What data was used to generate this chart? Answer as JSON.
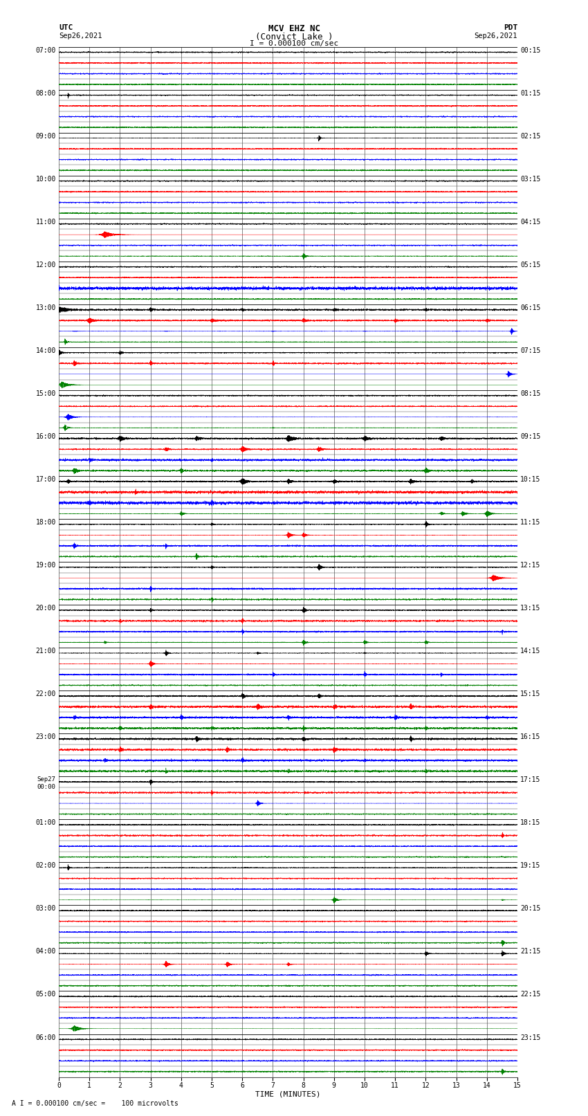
{
  "title_line1": "MCV EHZ NC",
  "title_line2": "(Convict Lake )",
  "scale_text": "I = 0.000100 cm/sec",
  "footer_text": "A I = 0.000100 cm/sec =    100 microvolts",
  "utc_label": "UTC",
  "utc_date": "Sep26,2021",
  "pdt_label": "PDT",
  "pdt_date": "Sep26,2021",
  "xlabel": "TIME (MINUTES)",
  "bg_color": "#ffffff",
  "fig_width": 8.5,
  "fig_height": 16.13,
  "dpi": 100,
  "left_labels_utc": [
    "07:00",
    "08:00",
    "09:00",
    "10:00",
    "11:00",
    "12:00",
    "13:00",
    "14:00",
    "15:00",
    "16:00",
    "17:00",
    "18:00",
    "19:00",
    "20:00",
    "21:00",
    "22:00",
    "23:00",
    "Sep27\n00:00",
    "01:00",
    "02:00",
    "03:00",
    "04:00",
    "05:00",
    "06:00"
  ],
  "right_labels_pdt": [
    "00:15",
    "01:15",
    "02:15",
    "03:15",
    "04:15",
    "05:15",
    "06:15",
    "07:15",
    "08:15",
    "09:15",
    "10:15",
    "11:15",
    "12:15",
    "13:15",
    "14:15",
    "15:15",
    "16:15",
    "17:15",
    "18:15",
    "19:15",
    "20:15",
    "21:15",
    "22:15",
    "23:15"
  ],
  "num_hours": 24,
  "traces_per_hour": 4,
  "x_min": 0,
  "x_max": 15
}
